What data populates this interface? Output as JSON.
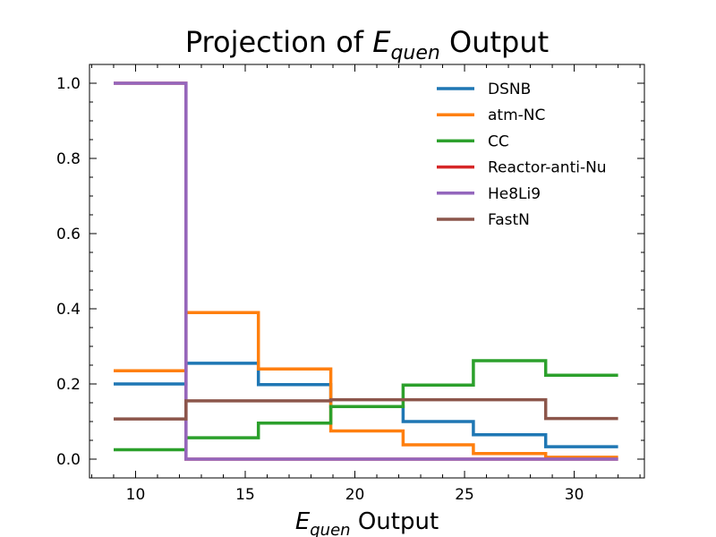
{
  "chart_data": {
    "type": "line",
    "drawstyle": "steps-post",
    "title_main": "Projection of ",
    "title_var": "E",
    "title_sub": "quen",
    "title_tail": " Output",
    "xlabel_var": "E",
    "xlabel_sub": "quen",
    "xlabel_tail": " Output",
    "xlim": [
      7.9,
      33.2
    ],
    "ylim": [
      -0.05,
      1.05
    ],
    "xticks": [
      10,
      15,
      20,
      25,
      30
    ],
    "xtick_labels": [
      "10",
      "15",
      "20",
      "25",
      "30"
    ],
    "yticks": [
      0.0,
      0.2,
      0.4,
      0.6,
      0.8,
      1.0
    ],
    "ytick_labels": [
      "0.0",
      "0.2",
      "0.4",
      "0.6",
      "0.8",
      "1.0"
    ],
    "x_edges": [
      9.0,
      12.3,
      15.6,
      18.9,
      22.2,
      25.4,
      28.7,
      32.0
    ],
    "legend_position": "upper-right",
    "grid": false,
    "series": [
      {
        "name": "DSNB",
        "color": "#1f77b4",
        "values": [
          0.2,
          0.255,
          0.198,
          0.14,
          0.1,
          0.065,
          0.033
        ]
      },
      {
        "name": "atm-NC",
        "color": "#ff7f0e",
        "values": [
          0.235,
          0.39,
          0.24,
          0.075,
          0.038,
          0.015,
          0.005
        ]
      },
      {
        "name": "CC",
        "color": "#2ca02c",
        "values": [
          0.025,
          0.057,
          0.096,
          0.14,
          0.197,
          0.262,
          0.223
        ]
      },
      {
        "name": "Reactor-anti-Nu",
        "color": "#d62728",
        "values": [
          1.0,
          0.0,
          0.0,
          0.0,
          0.0,
          0.0,
          0.0
        ]
      },
      {
        "name": "He8Li9",
        "color": "#9467bd",
        "values": [
          1.0,
          0.0,
          0.0,
          0.0,
          0.0,
          0.0,
          0.0
        ]
      },
      {
        "name": "FastN",
        "color": "#8c564b",
        "values": [
          0.107,
          0.155,
          0.155,
          0.158,
          0.158,
          0.158,
          0.108
        ]
      }
    ]
  }
}
